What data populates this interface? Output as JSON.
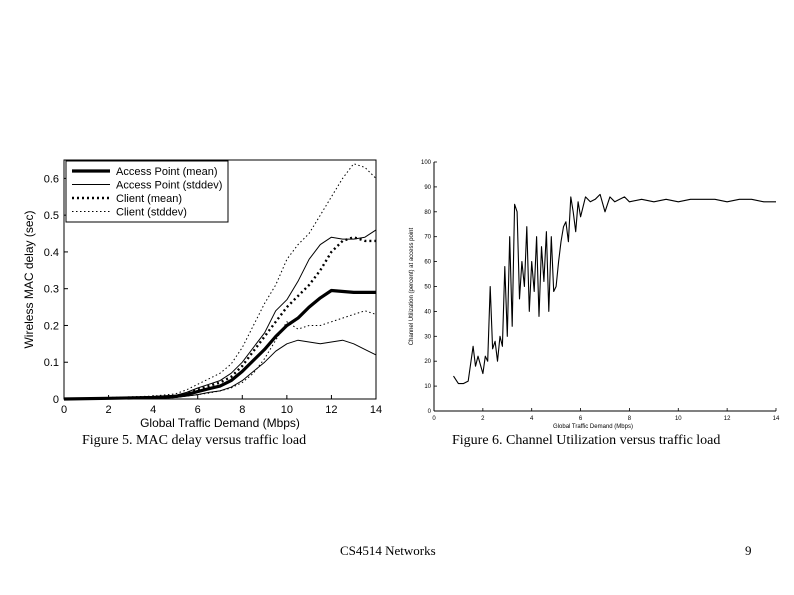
{
  "slide": {
    "footer": "CS4514 Networks",
    "page_number": "9"
  },
  "chart_data": [
    {
      "type": "line",
      "caption": "Figure 5. MAC delay versus traffic load",
      "xlabel": "Global Traffic Demand (Mbps)",
      "ylabel": "Wireless MAC delay (sec)",
      "xlim": [
        0,
        14
      ],
      "ylim": [
        0,
        0.65
      ],
      "xticks": [
        0,
        2,
        4,
        6,
        8,
        10,
        12,
        14
      ],
      "yticks": [
        0,
        0.1,
        0.2,
        0.3,
        0.4,
        0.5,
        0.6
      ],
      "grid": false,
      "legend": "top-left",
      "series": [
        {
          "name": "Access Point (mean)",
          "style": "thick",
          "x": [
            0,
            2,
            4,
            5,
            5.5,
            6,
            6.5,
            7,
            7.5,
            8,
            8.5,
            9,
            9.5,
            10,
            10.5,
            11,
            11.5,
            12,
            13,
            14
          ],
          "y": [
            0,
            0.002,
            0.004,
            0.007,
            0.012,
            0.02,
            0.028,
            0.035,
            0.05,
            0.075,
            0.105,
            0.135,
            0.17,
            0.2,
            0.22,
            0.25,
            0.275,
            0.295,
            0.29,
            0.29
          ]
        },
        {
          "name": "Access Point (stddev)",
          "style": "thin",
          "x": [
            0,
            2,
            4,
            5,
            5.5,
            6,
            6.5,
            7,
            7.5,
            8,
            8.5,
            9,
            9.5,
            10,
            10.5,
            11,
            11.5,
            12,
            12.5,
            13,
            13.5,
            14
          ],
          "y": [
            0,
            0.003,
            0.006,
            0.01,
            0.018,
            0.03,
            0.04,
            0.05,
            0.07,
            0.1,
            0.14,
            0.18,
            0.24,
            0.27,
            0.32,
            0.38,
            0.42,
            0.44,
            0.435,
            0.435,
            0.44,
            0.46
          ]
        },
        {
          "name": "Access Point (stddev)",
          "style": "thin",
          "x": [
            0,
            2,
            4,
            5,
            5.5,
            6,
            6.5,
            7,
            7.5,
            8,
            8.5,
            9,
            9.5,
            10,
            10.5,
            11,
            11.5,
            12,
            12.5,
            13,
            13.5,
            14
          ],
          "y": [
            0,
            0.001,
            0.002,
            0.004,
            0.008,
            0.012,
            0.018,
            0.022,
            0.032,
            0.05,
            0.075,
            0.1,
            0.13,
            0.15,
            0.16,
            0.155,
            0.15,
            0.155,
            0.16,
            0.15,
            0.135,
            0.12
          ]
        },
        {
          "name": "Client (mean)",
          "style": "dotted-thick",
          "x": [
            0,
            2,
            4,
            5,
            5.5,
            6,
            6.5,
            7,
            7.5,
            8,
            8.5,
            9,
            9.5,
            10,
            10.5,
            11,
            11.5,
            12,
            12.5,
            13,
            13.5,
            14
          ],
          "y": [
            0,
            0.002,
            0.004,
            0.008,
            0.015,
            0.025,
            0.035,
            0.045,
            0.06,
            0.09,
            0.13,
            0.17,
            0.21,
            0.25,
            0.28,
            0.31,
            0.35,
            0.4,
            0.43,
            0.44,
            0.43,
            0.43
          ]
        },
        {
          "name": "Client (stddev)",
          "style": "dotted-thin",
          "x": [
            0,
            2,
            4,
            5,
            5.5,
            6,
            6.5,
            7,
            7.5,
            8,
            8.5,
            9,
            9.5,
            10,
            10.5,
            11,
            11.5,
            12,
            12.5,
            13,
            13.5,
            14
          ],
          "y": [
            0,
            0.004,
            0.008,
            0.014,
            0.025,
            0.04,
            0.055,
            0.07,
            0.095,
            0.14,
            0.2,
            0.26,
            0.31,
            0.38,
            0.42,
            0.45,
            0.5,
            0.55,
            0.6,
            0.64,
            0.63,
            0.6
          ]
        },
        {
          "name": "Client (stddev)",
          "style": "dotted-thin",
          "x": [
            0,
            2,
            4,
            5,
            5.5,
            6,
            6.5,
            7,
            7.5,
            8,
            8.5,
            9,
            9.5,
            10,
            10.5,
            11,
            11.5,
            12,
            12.5,
            13,
            13.5,
            14
          ],
          "y": [
            0,
            0.001,
            0.002,
            0.004,
            0.008,
            0.012,
            0.016,
            0.022,
            0.03,
            0.045,
            0.07,
            0.11,
            0.16,
            0.21,
            0.19,
            0.2,
            0.2,
            0.21,
            0.22,
            0.23,
            0.24,
            0.23
          ]
        }
      ]
    },
    {
      "type": "line",
      "caption": "Figure 6. Channel Utilization versus traffic load",
      "xlabel": "Global Traffic Demand (Mbps)",
      "ylabel": "Channel Utilization (percent) at access point",
      "xlim": [
        0,
        14
      ],
      "ylim": [
        0,
        100
      ],
      "xticks": [
        0,
        2,
        4,
        6,
        8,
        10,
        12,
        14
      ],
      "yticks": [
        0,
        10,
        20,
        30,
        40,
        50,
        60,
        70,
        80,
        90,
        100
      ],
      "grid": false,
      "series": [
        {
          "style": "thin",
          "x": [
            0.8,
            1.0,
            1.2,
            1.4,
            1.6,
            1.7,
            1.8,
            2.0,
            2.1,
            2.2,
            2.3,
            2.4,
            2.5,
            2.6,
            2.7,
            2.8,
            2.9,
            3.0,
            3.1,
            3.2,
            3.3,
            3.4,
            3.5,
            3.6,
            3.7,
            3.8,
            3.9,
            4.0,
            4.1,
            4.2,
            4.3,
            4.4,
            4.5,
            4.6,
            4.7,
            4.8,
            4.9,
            5.0,
            5.1,
            5.2,
            5.3,
            5.4,
            5.5,
            5.6,
            5.7,
            5.8,
            5.9,
            6.0,
            6.2,
            6.4,
            6.6,
            6.8,
            7.0,
            7.2,
            7.4,
            7.6,
            7.8,
            8.0,
            8.5,
            9.0,
            9.5,
            10.0,
            10.5,
            11.0,
            11.5,
            12.0,
            12.5,
            13.0,
            13.5,
            14.0
          ],
          "y": [
            14,
            11,
            11,
            12,
            26,
            18,
            22,
            15,
            22,
            20,
            50,
            25,
            28,
            20,
            30,
            26,
            58,
            30,
            70,
            34,
            83,
            80,
            45,
            60,
            50,
            74,
            40,
            60,
            48,
            70,
            38,
            66,
            52,
            72,
            40,
            70,
            48,
            50,
            60,
            68,
            74,
            76,
            68,
            86,
            80,
            72,
            84,
            78,
            86,
            84,
            85,
            87,
            80,
            86,
            84,
            85,
            86,
            84,
            85,
            84,
            85,
            84,
            85,
            85,
            85,
            84,
            85,
            85,
            84,
            84
          ]
        }
      ]
    }
  ]
}
